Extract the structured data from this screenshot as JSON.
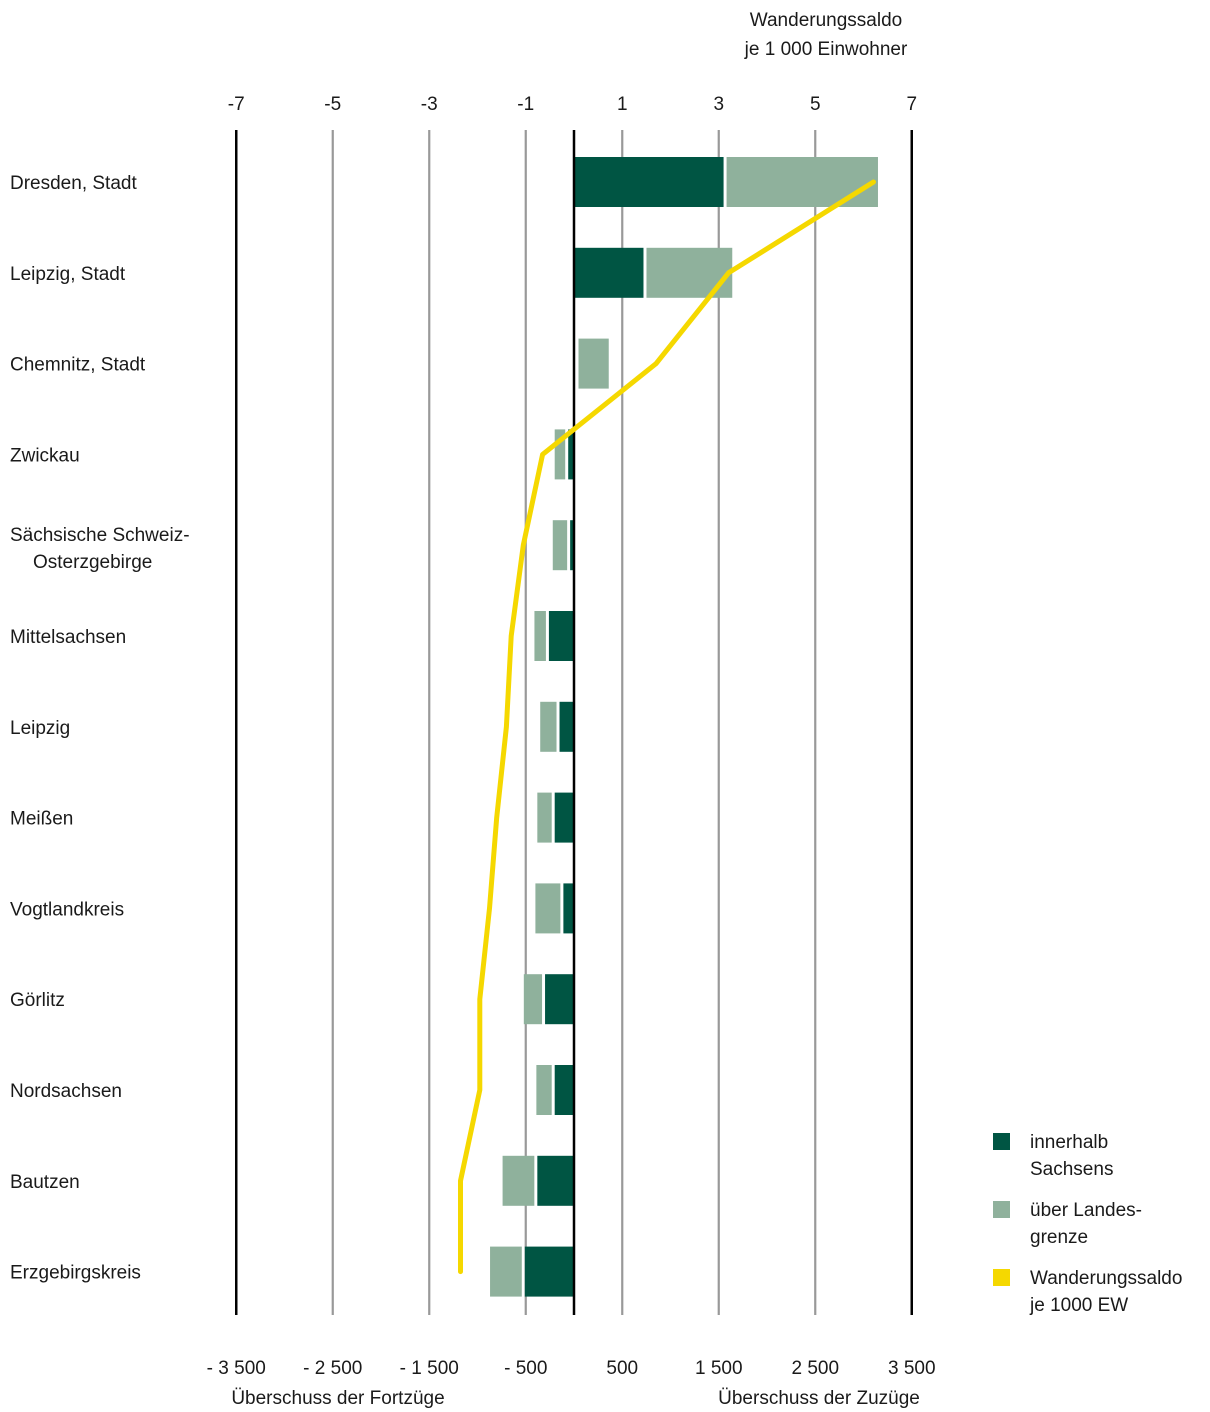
{
  "chart_data": {
    "type": "bar",
    "orientation": "horizontal",
    "stacked": true,
    "top_axis_title": [
      "Wanderungssaldo",
      "je 1 000 Einwohner"
    ],
    "top_ticks": [
      "-7",
      "-5",
      "-3",
      "-1",
      "1",
      "3",
      "5",
      "7"
    ],
    "bottom_ticks": [
      "- 3 500",
      "- 2 500",
      "- 1 500",
      "-  500",
      "500",
      "1 500",
      "2 500",
      "3 500"
    ],
    "bottom_left_label": "Überschuss der Fortzüge",
    "bottom_right_label": "Überschuss der Zuzüge",
    "xlim": [
      -3500,
      3500
    ],
    "x2lim": [
      -7,
      7
    ],
    "categories": [
      "Dresden, Stadt",
      "Leipzig, Stadt",
      "Chemnitz, Stadt",
      "Zwickau",
      [
        "Sächsische Schweiz-",
        "Osterzgebirge"
      ],
      "Mittelsachsen",
      "Leipzig",
      "Meißen",
      "Vogtlandkreis",
      "Görlitz",
      "Nordsachsen",
      "Bautzen",
      "Erzgebirgskreis"
    ],
    "series": [
      {
        "name": "innerhalb Sachsens",
        "color": "#005543",
        "values": [
          1550,
          720,
          0,
          -60,
          -40,
          -260,
          -150,
          -200,
          -110,
          -300,
          -200,
          -380,
          -510
        ]
      },
      {
        "name": "über Landesgrenze",
        "color": "#8fb19c",
        "values": [
          1600,
          920,
          360,
          -140,
          -180,
          -150,
          -200,
          -180,
          -290,
          -220,
          -190,
          -360,
          -360
        ]
      },
      {
        "name": "Wanderungssaldo je 1000 EW",
        "color": "#f5d800",
        "type": "line",
        "axis": "top",
        "values": [
          6.2,
          3.2,
          1.7,
          -0.65,
          -1.05,
          -1.3,
          -1.4,
          -1.6,
          -1.75,
          -1.95,
          -1.95,
          -2.35,
          -2.35
        ]
      }
    ],
    "legend": {
      "position": "bottom-right",
      "items": [
        {
          "lines": [
            "innerhalb",
            "Sachsens"
          ],
          "color": "#005543"
        },
        {
          "lines": [
            "über Landes-",
            "grenze"
          ],
          "color": "#8fb19c"
        },
        {
          "lines": [
            "Wanderungssaldo",
            "je 1000 EW"
          ],
          "color": "#f5d800"
        }
      ]
    },
    "grid": true
  }
}
